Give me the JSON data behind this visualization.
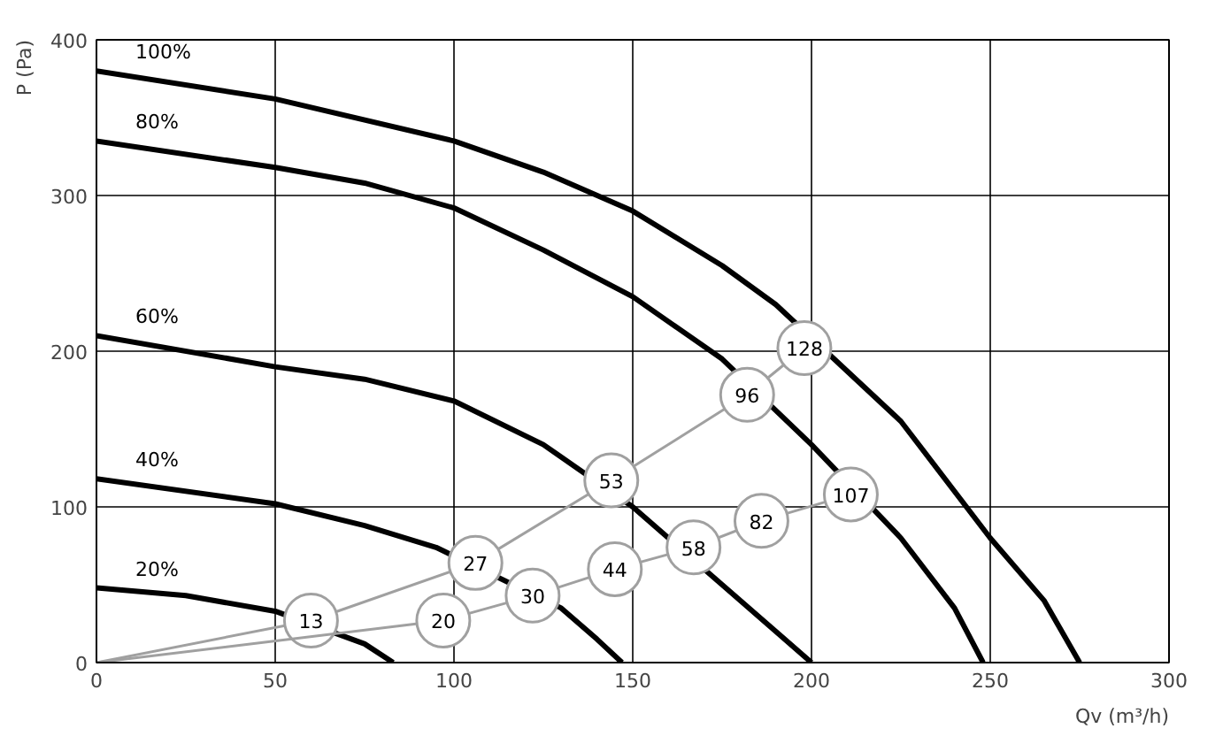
{
  "chart_data": {
    "type": "line",
    "xlabel": "Qv (m³/h)",
    "ylabel": "P (Pa)",
    "xlim": [
      0,
      300
    ],
    "ylim": [
      0,
      400
    ],
    "xticks": [
      0,
      50,
      100,
      150,
      200,
      250,
      300
    ],
    "yticks": [
      0,
      100,
      200,
      300,
      400
    ],
    "grid": true,
    "line_style": "solid",
    "series": [
      {
        "name": "100%",
        "color": "#000000",
        "x": [
          0,
          50,
          100,
          125,
          150,
          175,
          190,
          225,
          250,
          265,
          275
        ],
        "values": [
          380,
          362,
          335,
          315,
          290,
          255,
          230,
          155,
          80,
          40,
          0
        ]
      },
      {
        "name": "80%",
        "color": "#000000",
        "x": [
          0,
          50,
          75,
          100,
          125,
          150,
          175,
          200,
          225,
          240,
          248
        ],
        "values": [
          335,
          318,
          308,
          292,
          265,
          235,
          195,
          140,
          80,
          35,
          0
        ]
      },
      {
        "name": "60%",
        "color": "#000000",
        "x": [
          0,
          50,
          75,
          100,
          125,
          150,
          175,
          190,
          200
        ],
        "values": [
          210,
          190,
          182,
          168,
          140,
          100,
          50,
          20,
          0
        ]
      },
      {
        "name": "40%",
        "color": "#000000",
        "x": [
          0,
          50,
          75,
          95,
          130,
          140,
          147
        ],
        "values": [
          118,
          102,
          88,
          74,
          35,
          15,
          0
        ]
      },
      {
        "name": "20%",
        "color": "#000000",
        "x": [
          0,
          25,
          50,
          75,
          83
        ],
        "values": [
          48,
          43,
          33,
          12,
          0
        ]
      },
      {
        "color": "#a0a0a0",
        "marker": "circle",
        "x": [
          0,
          60,
          106,
          144,
          182,
          198
        ],
        "values": [
          0,
          27,
          64,
          117,
          172,
          202
        ]
      },
      {
        "color": "#a0a0a0",
        "marker": "circle",
        "x": [
          0,
          97,
          122,
          145,
          167,
          186,
          211
        ],
        "values": [
          0,
          27,
          43,
          60,
          74,
          91,
          108
        ]
      }
    ],
    "annotations": [
      {
        "text": "13",
        "x": 60,
        "y": 27
      },
      {
        "text": "27",
        "x": 106,
        "y": 64
      },
      {
        "text": "53",
        "x": 144,
        "y": 117
      },
      {
        "text": "96",
        "x": 182,
        "y": 172
      },
      {
        "text": "128",
        "x": 198,
        "y": 202
      },
      {
        "text": "20",
        "x": 97,
        "y": 27
      },
      {
        "text": "30",
        "x": 122,
        "y": 43
      },
      {
        "text": "44",
        "x": 145,
        "y": 60
      },
      {
        "text": "58",
        "x": 167,
        "y": 74
      },
      {
        "text": "82",
        "x": 186,
        "y": 91
      },
      {
        "text": "107",
        "x": 211,
        "y": 108
      }
    ]
  }
}
